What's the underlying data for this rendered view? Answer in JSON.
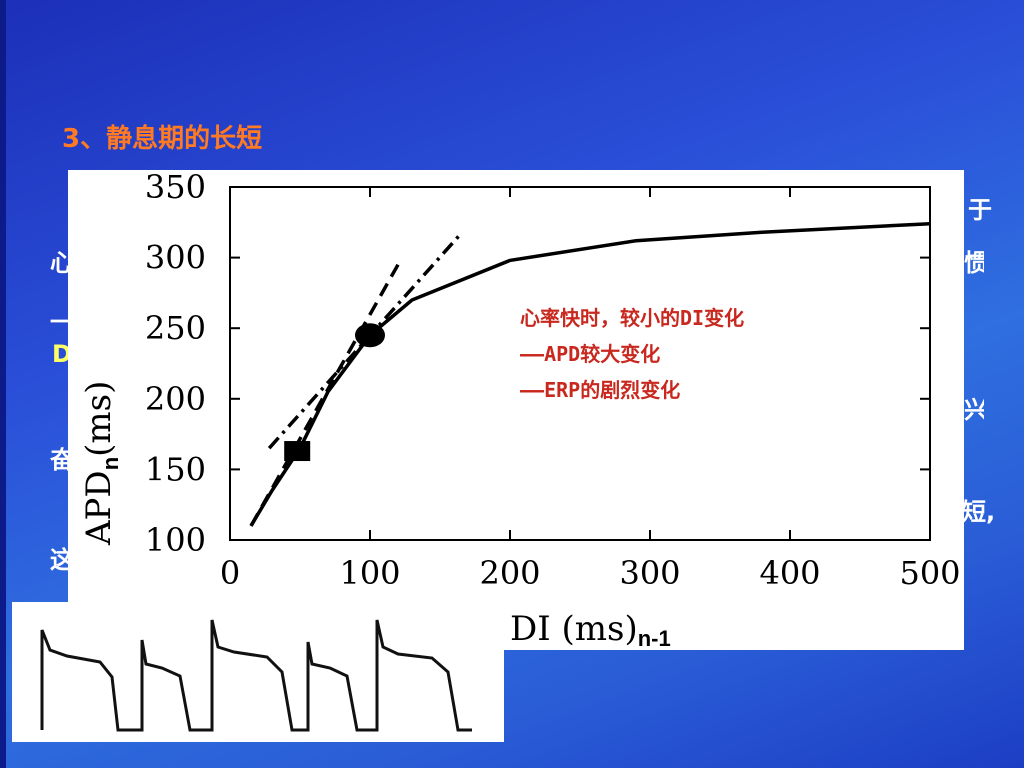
{
  "slide": {
    "title": "3、静息期的长短",
    "background_glyphs": [
      "于",
      "心",
      "惯",
      "一",
      "D",
      "兴",
      "奋",
      "短,",
      "这"
    ]
  },
  "chart_data": {
    "type": "line",
    "xlabel": "DI (ms)",
    "xlabel_subscript": "n-1",
    "ylabel": "APD",
    "ylabel_subscript": "n",
    "ylabel_suffix": "(ms)",
    "xlim": [
      0,
      500
    ],
    "ylim": [
      100,
      350
    ],
    "x_ticks": [
      0,
      100,
      200,
      300,
      400,
      500
    ],
    "y_ticks": [
      100,
      150,
      200,
      250,
      300,
      350
    ],
    "grid": false,
    "series": [
      {
        "style": "solid",
        "x": [
          15,
          30,
          50,
          70,
          100,
          130,
          200,
          290,
          380,
          500
        ],
        "y": [
          110,
          135,
          165,
          205,
          245,
          270,
          298,
          312,
          318,
          324
        ]
      },
      {
        "style": "dashed",
        "x": [
          15,
          120
        ],
        "y": [
          110,
          295
        ]
      },
      {
        "style": "dash-dot",
        "x": [
          28,
          165
        ],
        "y": [
          165,
          317
        ]
      }
    ],
    "markers": [
      {
        "shape": "square",
        "x": 48,
        "y": 163
      },
      {
        "shape": "circle",
        "x": 100,
        "y": 245
      }
    ],
    "annotations": [
      "心率快时，较小的DI变化",
      "——APD较大变化",
      "——ERP的剧烈变化"
    ],
    "colors": {
      "annotation": "#c8281e",
      "line": "#000000"
    }
  },
  "waveform": {
    "description_icon": "action-potential-train-icon"
  }
}
